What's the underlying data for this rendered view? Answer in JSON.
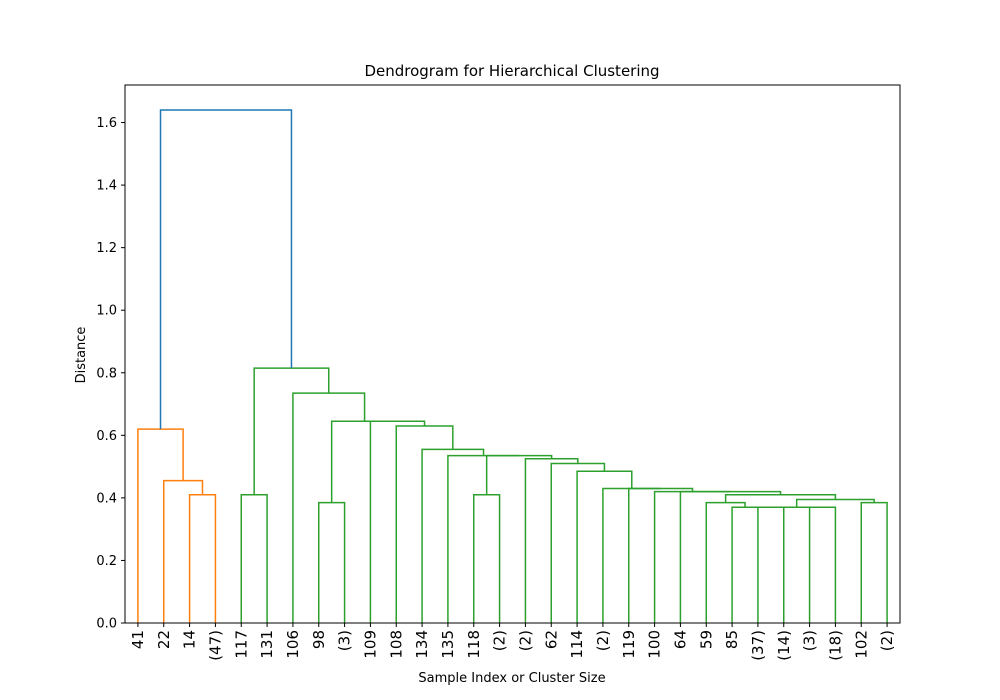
{
  "chart_data": {
    "type": "dendrogram",
    "title": "Dendrogram for Hierarchical Clustering",
    "xlabel": "Sample Index or Cluster Size",
    "ylabel": "Distance",
    "ylim": [
      0,
      1.72
    ],
    "yticks": [
      0.0,
      0.2,
      0.4,
      0.6,
      0.8,
      1.0,
      1.2,
      1.4,
      1.6
    ],
    "leaves": [
      "41",
      "22",
      "14",
      "(47)",
      "117",
      "131",
      "106",
      "98",
      "(3)",
      "109",
      "108",
      "134",
      "135",
      "118",
      "(2)",
      "(2)",
      "62",
      "114",
      "(2)",
      "119",
      "100",
      "64",
      "59",
      "85",
      "(37)",
      "(14)",
      "(3)",
      "(18)",
      "102",
      "(2)"
    ],
    "merges": [
      {
        "left": 2,
        "right": 3,
        "height": 0.41,
        "color": "orange"
      },
      {
        "left": 1,
        "right": 30,
        "height": 0.455,
        "color": "orange"
      },
      {
        "left": 0,
        "right": 31,
        "height": 0.62,
        "color": "orange"
      },
      {
        "left": 4,
        "right": 5,
        "height": 0.41,
        "color": "green"
      },
      {
        "left": 7,
        "right": 8,
        "height": 0.385,
        "color": "green"
      },
      {
        "left": 13,
        "right": 14,
        "height": 0.41,
        "color": "green"
      },
      {
        "left": 23,
        "right": 24,
        "height": 0.37,
        "color": "green"
      },
      {
        "left": 25,
        "right": 26,
        "height": 0.37,
        "color": "green"
      },
      {
        "left": 36,
        "right": 27,
        "height": 0.37,
        "color": "green"
      },
      {
        "left": 28,
        "right": 29,
        "height": 0.385,
        "color": "green"
      },
      {
        "left": 22,
        "right": 36,
        "height": 0.385,
        "color": "green"
      },
      {
        "left": 37,
        "right": 39,
        "height": 0.395,
        "color": "green"
      },
      {
        "left": 40,
        "right": 41,
        "height": 0.41,
        "color": "green"
      },
      {
        "left": 21,
        "right": 42,
        "height": 0.42,
        "color": "green"
      },
      {
        "left": 20,
        "right": 43,
        "height": 0.42,
        "color": "green"
      },
      {
        "left": 19,
        "right": 44,
        "height": 0.43,
        "color": "green"
      },
      {
        "left": 18,
        "right": 45,
        "height": 0.43,
        "color": "green"
      },
      {
        "left": 17,
        "right": 46,
        "height": 0.485,
        "color": "green"
      },
      {
        "left": 16,
        "right": 47,
        "height": 0.51,
        "color": "green"
      },
      {
        "left": 15,
        "right": 48,
        "height": 0.525,
        "color": "green"
      },
      {
        "left": 35,
        "right": 49,
        "height": 0.535,
        "color": "green"
      },
      {
        "left": 12,
        "right": 50,
        "height": 0.535,
        "color": "green"
      },
      {
        "left": 11,
        "right": 51,
        "height": 0.555,
        "color": "green"
      },
      {
        "left": 10,
        "right": 52,
        "height": 0.63,
        "color": "green"
      },
      {
        "left": 9,
        "right": 53,
        "height": 0.645,
        "color": "green"
      },
      {
        "left": 34,
        "right": 54,
        "height": 0.645,
        "color": "green"
      },
      {
        "left": 6,
        "right": 55,
        "height": 0.735,
        "color": "green"
      },
      {
        "left": 33,
        "right": 56,
        "height": 0.815,
        "color": "green"
      },
      {
        "left": 32,
        "right": 57,
        "height": 1.64,
        "color": "blue"
      }
    ],
    "colors": {
      "orange": "#ff7f0e",
      "green": "#2ca02c",
      "blue": "#1f77b4"
    },
    "grid": false,
    "legend": "none"
  }
}
